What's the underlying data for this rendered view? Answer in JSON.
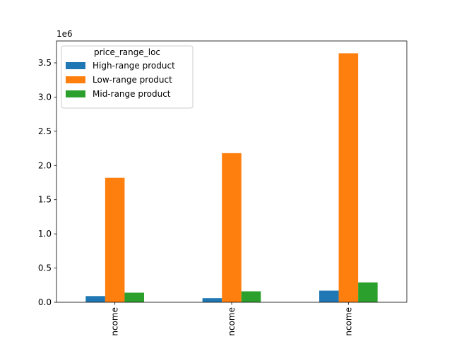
{
  "chart_data": {
    "type": "bar",
    "title": "",
    "xlabel": "",
    "ylabel": "",
    "y_scale_label": "1e6",
    "ylim": [
      0,
      3.82
    ],
    "yticks": [
      0.0,
      0.5,
      1.0,
      1.5,
      2.0,
      2.5,
      3.0,
      3.5
    ],
    "ytick_labels": [
      "0.0",
      "0.5",
      "1.0",
      "1.5",
      "2.0",
      "2.5",
      "3.0",
      "3.5"
    ],
    "categories": [
      "ncome",
      "ncome",
      "ncome"
    ],
    "legend": {
      "title": "price_range_loc",
      "position": "top-left"
    },
    "series": [
      {
        "name": "High-range product",
        "color": "#1f77b4",
        "values": [
          0.09,
          0.06,
          0.17
        ]
      },
      {
        "name": "Low-range product",
        "color": "#ff7f0e",
        "values": [
          1.82,
          2.18,
          3.64
        ]
      },
      {
        "name": "Mid-range product",
        "color": "#2ca02c",
        "values": [
          0.14,
          0.16,
          0.29
        ]
      }
    ]
  }
}
